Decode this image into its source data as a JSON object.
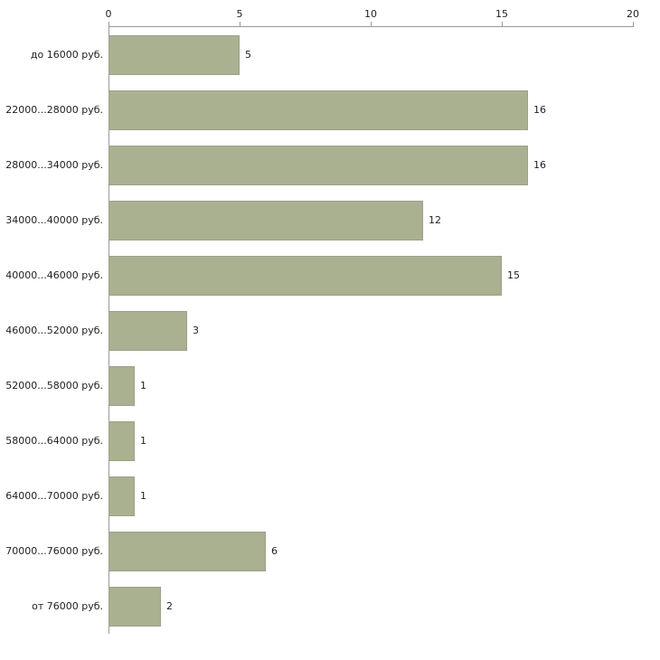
{
  "chart_data": {
    "type": "bar",
    "orientation": "horizontal",
    "title": "",
    "xlabel": "",
    "ylabel": "",
    "categories": [
      "до 16000 руб.",
      "22000...28000 руб.",
      "28000...34000 руб.",
      "34000...40000 руб.",
      "40000...46000 руб.",
      "46000...52000 руб.",
      "52000...58000 руб.",
      "58000...64000 руб.",
      "64000...70000 руб.",
      "70000...76000 руб.",
      "от 76000 руб."
    ],
    "values": [
      5,
      16,
      16,
      12,
      15,
      3,
      1,
      1,
      1,
      6,
      2
    ],
    "xlim": [
      0,
      20
    ],
    "x_ticks": [
      0,
      5,
      10,
      15,
      20
    ],
    "x_axis_position": "top",
    "grid": "off",
    "legend": "none",
    "value_labels": "right-of-bar",
    "bar_color": "#a9b191",
    "bar_border_color": "#9ba285",
    "axis_color": "#9a9a9a",
    "text_color": "#222222"
  }
}
